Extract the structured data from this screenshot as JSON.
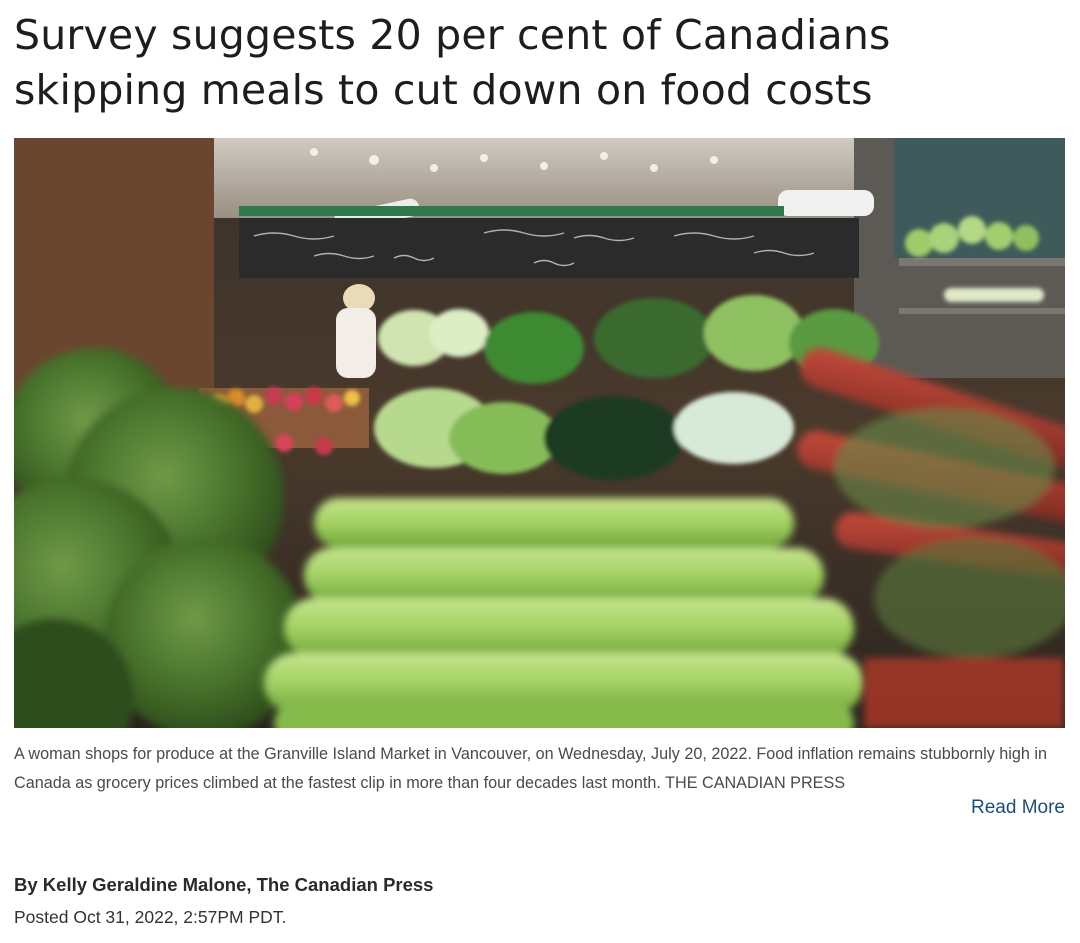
{
  "article": {
    "headline": "Survey suggests 20 per cent of Canadians skipping meals to cut down on food costs",
    "caption": "A woman shops for produce at the Granville Island Market in Vancouver, on Wednesday, July 20, 2022. Food inflation remains stubbornly high in Canada as grocery prices climbed at the fastest clip in more than four decades last month. THE CANADIAN PRESS",
    "read_more_label": "Read More",
    "byline": "By Kelly Geraldine Malone, The Canadian Press",
    "posted": "Posted Oct 31, 2022, 2:57PM PDT."
  },
  "photo": {
    "subject": "produce-market-photo",
    "palette": {
      "background": "#2a2420",
      "broccoli": "#4e7a32",
      "celery": "#9fcf5c",
      "rhubarb": "#a8322a",
      "lettuce": "#b9dc86",
      "chalkboard": "#2b2b2b"
    }
  }
}
